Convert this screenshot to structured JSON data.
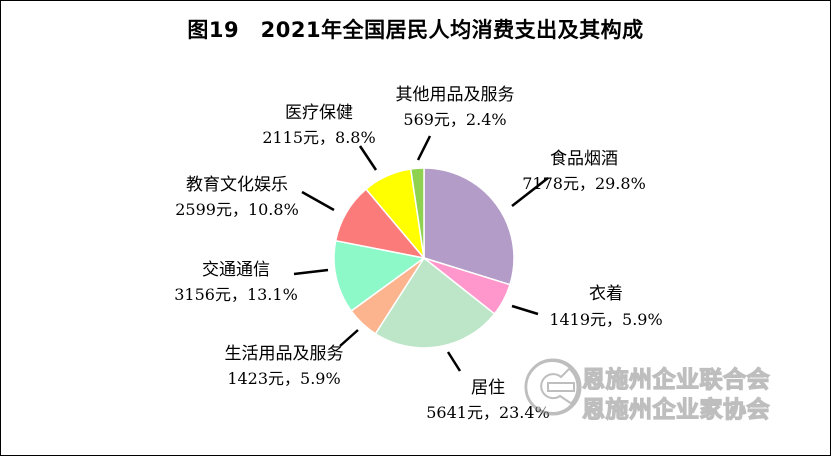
{
  "title": "图19　2021年全国居民人均消费支出及其构成",
  "chart_data": {
    "type": "pie",
    "title": "图19　2021年全国居民人均消费支出及其构成",
    "unit": "元",
    "slices": [
      {
        "name": "食品烟酒",
        "value": 7178,
        "percent": "29.8%",
        "value_label": "7178元，29.8%",
        "color": "#b39dc8"
      },
      {
        "name": "衣着",
        "value": 1419,
        "percent": "5.9%",
        "value_label": "1419元，5.9%",
        "color": "#ff96cc"
      },
      {
        "name": "居住",
        "value": 5641,
        "percent": "23.4%",
        "value_label": "5641元，23.4%",
        "color": "#bde6c8"
      },
      {
        "name": "生活用品及服务",
        "value": 1423,
        "percent": "5.9%",
        "value_label": "1423元，5.9%",
        "color": "#fcb48f"
      },
      {
        "name": "交通通信",
        "value": 3156,
        "percent": "13.1%",
        "value_label": "3156元，13.1%",
        "color": "#8df8c8"
      },
      {
        "name": "教育文化娱乐",
        "value": 2599,
        "percent": "10.8%",
        "value_label": "2599元，10.8%",
        "color": "#fb7b7b"
      },
      {
        "name": "医疗保健",
        "value": 2115,
        "percent": "8.8%",
        "value_label": "2115元，8.8%",
        "color": "#ffff00"
      },
      {
        "name": "其他用品及服务",
        "value": 569,
        "percent": "2.4%",
        "value_label": "569元，2.4%",
        "color": "#8fd24f"
      }
    ],
    "start_angle": "12 o'clock",
    "direction": "clockwise",
    "legend": "none"
  },
  "watermark": {
    "lines": [
      "恩施州企业联合会",
      "恩施州企业家协会"
    ]
  }
}
